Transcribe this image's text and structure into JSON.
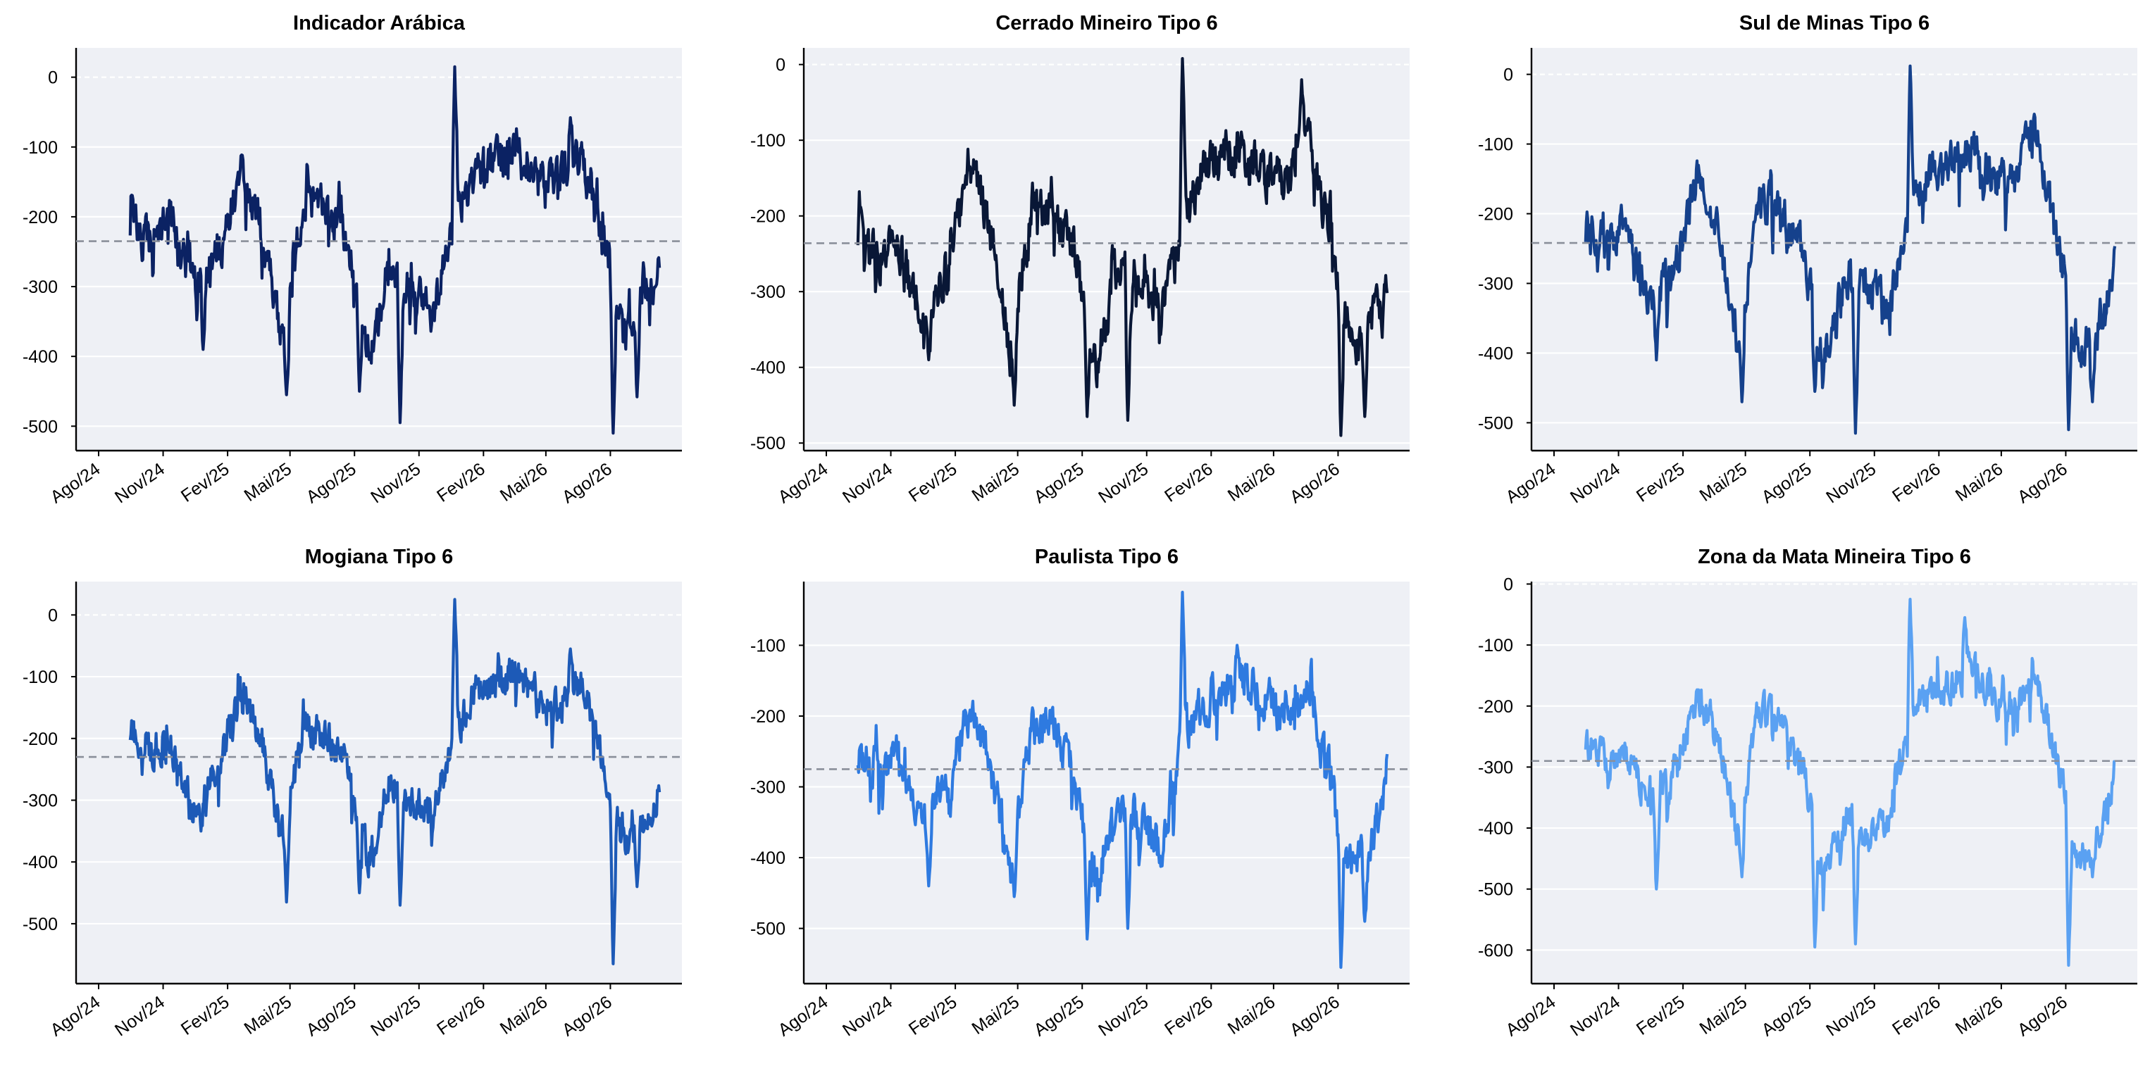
{
  "chart_data": [
    {
      "type": "line",
      "title": "Indicador Arábica",
      "color": "#0b2263",
      "mean": -235,
      "ylim": [
        -535,
        42
      ],
      "y_ticks": [
        0,
        -100,
        -200,
        -300,
        -400,
        -500
      ],
      "x_ticks": [
        "Ago/24",
        "Nov/24",
        "Fev/25",
        "Mai/25",
        "Ago/25",
        "Nov/25",
        "Fev/26",
        "Mai/26",
        "Ago/26"
      ],
      "anchors": [
        {
          "x": "2024-09-15",
          "y": -205
        },
        {
          "x": "2024-10-15",
          "y": -240
        },
        {
          "x": "2024-11-10",
          "y": -190
        },
        {
          "x": "2024-12-10",
          "y": -300
        },
        {
          "x": "2025-01-20",
          "y": -250
        },
        {
          "x": "2025-02-20",
          "y": -140
        },
        {
          "x": "2025-03-20",
          "y": -210
        },
        {
          "x": "2025-04-20",
          "y": -380
        },
        {
          "x": "2025-05-20",
          "y": -175
        },
        {
          "x": "2025-06-20",
          "y": -180
        },
        {
          "x": "2025-07-20",
          "y": -230
        },
        {
          "x": "2025-08-20",
          "y": -400
        },
        {
          "x": "2025-09-20",
          "y": -280
        },
        {
          "x": "2025-10-20",
          "y": -300
        },
        {
          "x": "2025-11-20",
          "y": -340
        },
        {
          "x": "2025-12-20",
          "y": -200
        },
        {
          "x": "2026-01-20",
          "y": -140
        },
        {
          "x": "2026-02-20",
          "y": -120
        },
        {
          "x": "2026-03-20",
          "y": -100
        },
        {
          "x": "2026-04-20",
          "y": -150
        },
        {
          "x": "2026-05-20",
          "y": -140
        },
        {
          "x": "2026-06-20",
          "y": -110
        },
        {
          "x": "2026-07-20",
          "y": -240
        },
        {
          "x": "2026-08-20",
          "y": -380
        },
        {
          "x": "2026-09-20",
          "y": -300
        },
        {
          "x": "2026-10-10",
          "y": -270
        }
      ],
      "spikes": [
        {
          "x": "2024-12-28",
          "y": -390
        },
        {
          "x": "2025-04-26",
          "y": -455
        },
        {
          "x": "2025-08-08",
          "y": -450
        },
        {
          "x": "2025-10-05",
          "y": -495
        },
        {
          "x": "2025-12-22",
          "y": 15
        },
        {
          "x": "2026-06-05",
          "y": -58
        },
        {
          "x": "2026-08-05",
          "y": -510
        },
        {
          "x": "2026-09-08",
          "y": -458
        }
      ]
    },
    {
      "type": "line",
      "title": "Cerrado Mineiro Tipo 6",
      "color": "#091736",
      "mean": -236,
      "ylim": [
        -510,
        22
      ],
      "y_ticks": [
        0,
        -100,
        -200,
        -300,
        -400,
        -500
      ],
      "x_ticks": [
        "Ago/24",
        "Nov/24",
        "Fev/25",
        "Mai/25",
        "Ago/25",
        "Nov/25",
        "Fev/26",
        "Mai/26",
        "Ago/26"
      ],
      "anchors": [
        {
          "x": "2024-09-15",
          "y": -220
        },
        {
          "x": "2024-10-15",
          "y": -255
        },
        {
          "x": "2024-11-10",
          "y": -230
        },
        {
          "x": "2024-12-10",
          "y": -330
        },
        {
          "x": "2025-01-20",
          "y": -280
        },
        {
          "x": "2025-02-20",
          "y": -130
        },
        {
          "x": "2025-03-20",
          "y": -210
        },
        {
          "x": "2025-04-20",
          "y": -380
        },
        {
          "x": "2025-05-20",
          "y": -190
        },
        {
          "x": "2025-06-20",
          "y": -200
        },
        {
          "x": "2025-07-20",
          "y": -240
        },
        {
          "x": "2025-08-20",
          "y": -400
        },
        {
          "x": "2025-09-20",
          "y": -260
        },
        {
          "x": "2025-10-20",
          "y": -300
        },
        {
          "x": "2025-11-20",
          "y": -320
        },
        {
          "x": "2025-12-20",
          "y": -220
        },
        {
          "x": "2026-01-20",
          "y": -140
        },
        {
          "x": "2026-02-20",
          "y": -120
        },
        {
          "x": "2026-03-20",
          "y": -110
        },
        {
          "x": "2026-04-20",
          "y": -150
        },
        {
          "x": "2026-05-20",
          "y": -150
        },
        {
          "x": "2026-06-20",
          "y": -100
        },
        {
          "x": "2026-07-20",
          "y": -230
        },
        {
          "x": "2026-08-20",
          "y": -380
        },
        {
          "x": "2026-09-20",
          "y": -330
        },
        {
          "x": "2026-10-10",
          "y": -300
        }
      ],
      "spikes": [
        {
          "x": "2024-12-25",
          "y": -390
        },
        {
          "x": "2025-04-26",
          "y": -450
        },
        {
          "x": "2025-08-08",
          "y": -465
        },
        {
          "x": "2025-10-05",
          "y": -470
        },
        {
          "x": "2025-12-22",
          "y": 8
        },
        {
          "x": "2026-06-10",
          "y": -20
        },
        {
          "x": "2026-08-05",
          "y": -490
        },
        {
          "x": "2026-09-08",
          "y": -465
        }
      ]
    },
    {
      "type": "line",
      "title": "Sul de Minas Tipo 6",
      "color": "#15418c",
      "mean": -242,
      "ylim": [
        -540,
        38
      ],
      "y_ticks": [
        0,
        -100,
        -200,
        -300,
        -400,
        -500
      ],
      "x_ticks": [
        "Ago/24",
        "Nov/24",
        "Fev/25",
        "Mai/25",
        "Ago/25",
        "Nov/25",
        "Fev/26",
        "Mai/26",
        "Ago/26"
      ],
      "anchors": [
        {
          "x": "2024-09-15",
          "y": -225
        },
        {
          "x": "2024-10-15",
          "y": -245
        },
        {
          "x": "2024-11-10",
          "y": -210
        },
        {
          "x": "2024-12-10",
          "y": -320
        },
        {
          "x": "2025-01-20",
          "y": -280
        },
        {
          "x": "2025-02-20",
          "y": -145
        },
        {
          "x": "2025-03-20",
          "y": -210
        },
        {
          "x": "2025-04-20",
          "y": -390
        },
        {
          "x": "2025-05-20",
          "y": -180
        },
        {
          "x": "2025-06-20",
          "y": -190
        },
        {
          "x": "2025-07-20",
          "y": -250
        },
        {
          "x": "2025-08-20",
          "y": -410
        },
        {
          "x": "2025-09-20",
          "y": -290
        },
        {
          "x": "2025-10-20",
          "y": -300
        },
        {
          "x": "2025-11-20",
          "y": -340
        },
        {
          "x": "2025-12-20",
          "y": -200
        },
        {
          "x": "2026-01-20",
          "y": -140
        },
        {
          "x": "2026-02-20",
          "y": -120
        },
        {
          "x": "2026-03-20",
          "y": -110
        },
        {
          "x": "2026-04-20",
          "y": -150
        },
        {
          "x": "2026-05-20",
          "y": -150
        },
        {
          "x": "2026-06-20",
          "y": -80
        },
        {
          "x": "2026-07-20",
          "y": -250
        },
        {
          "x": "2026-08-20",
          "y": -400
        },
        {
          "x": "2026-09-20",
          "y": -360
        },
        {
          "x": "2026-10-10",
          "y": -270
        }
      ],
      "spikes": [
        {
          "x": "2024-12-25",
          "y": -410
        },
        {
          "x": "2025-04-26",
          "y": -470
        },
        {
          "x": "2025-08-08",
          "y": -455
        },
        {
          "x": "2025-10-05",
          "y": -515
        },
        {
          "x": "2025-12-22",
          "y": 12
        },
        {
          "x": "2026-06-05",
          "y": -68
        },
        {
          "x": "2026-08-05",
          "y": -510
        },
        {
          "x": "2026-09-08",
          "y": -470
        }
      ]
    },
    {
      "type": "line",
      "title": "Mogiana Tipo 6",
      "color": "#1d5ab7",
      "mean": -230,
      "ylim": [
        -597,
        54
      ],
      "y_ticks": [
        0,
        -100,
        -200,
        -300,
        -400,
        -500
      ],
      "x_ticks": [
        "Ago/24",
        "Nov/24",
        "Fev/25",
        "Mai/25",
        "Ago/25",
        "Nov/25",
        "Fev/26",
        "Mai/26",
        "Ago/26"
      ],
      "anchors": [
        {
          "x": "2024-09-15",
          "y": -190
        },
        {
          "x": "2024-10-15",
          "y": -220
        },
        {
          "x": "2024-11-10",
          "y": -200
        },
        {
          "x": "2024-12-10",
          "y": -300
        },
        {
          "x": "2025-01-20",
          "y": -240
        },
        {
          "x": "2025-02-20",
          "y": -130
        },
        {
          "x": "2025-03-20",
          "y": -200
        },
        {
          "x": "2025-04-20",
          "y": -360
        },
        {
          "x": "2025-05-20",
          "y": -180
        },
        {
          "x": "2025-06-20",
          "y": -190
        },
        {
          "x": "2025-07-20",
          "y": -240
        },
        {
          "x": "2025-08-20",
          "y": -400
        },
        {
          "x": "2025-09-20",
          "y": -270
        },
        {
          "x": "2025-10-20",
          "y": -300
        },
        {
          "x": "2025-11-20",
          "y": -330
        },
        {
          "x": "2025-12-20",
          "y": -200
        },
        {
          "x": "2026-01-20",
          "y": -120
        },
        {
          "x": "2026-02-20",
          "y": -110
        },
        {
          "x": "2026-03-20",
          "y": -90
        },
        {
          "x": "2026-04-20",
          "y": -150
        },
        {
          "x": "2026-05-20",
          "y": -150
        },
        {
          "x": "2026-06-20",
          "y": -100
        },
        {
          "x": "2026-07-20",
          "y": -240
        },
        {
          "x": "2026-08-20",
          "y": -380
        },
        {
          "x": "2026-09-20",
          "y": -330
        },
        {
          "x": "2026-10-10",
          "y": -280
        }
      ],
      "spikes": [
        {
          "x": "2024-12-25",
          "y": -350
        },
        {
          "x": "2025-04-26",
          "y": -465
        },
        {
          "x": "2025-08-08",
          "y": -450
        },
        {
          "x": "2025-10-05",
          "y": -470
        },
        {
          "x": "2025-12-22",
          "y": 25
        },
        {
          "x": "2026-06-05",
          "y": -55
        },
        {
          "x": "2026-08-05",
          "y": -565
        },
        {
          "x": "2026-09-08",
          "y": -440
        }
      ]
    },
    {
      "type": "line",
      "title": "Paulista Tipo 6",
      "color": "#2e7ae0",
      "mean": -275,
      "ylim": [
        -578,
        -10
      ],
      "y_ticks": [
        -100,
        -200,
        -300,
        -400,
        -500
      ],
      "x_ticks": [
        "Ago/24",
        "Nov/24",
        "Fev/25",
        "Mai/25",
        "Ago/25",
        "Nov/25",
        "Fev/26",
        "Mai/26",
        "Ago/26"
      ],
      "anchors": [
        {
          "x": "2024-09-15",
          "y": -260
        },
        {
          "x": "2024-10-15",
          "y": -275
        },
        {
          "x": "2024-11-10",
          "y": -250
        },
        {
          "x": "2024-12-10",
          "y": -350
        },
        {
          "x": "2025-01-20",
          "y": -300
        },
        {
          "x": "2025-02-20",
          "y": -190
        },
        {
          "x": "2025-03-20",
          "y": -260
        },
        {
          "x": "2025-04-20",
          "y": -410
        },
        {
          "x": "2025-05-20",
          "y": -220
        },
        {
          "x": "2025-06-20",
          "y": -220
        },
        {
          "x": "2025-07-20",
          "y": -280
        },
        {
          "x": "2025-08-20",
          "y": -450
        },
        {
          "x": "2025-09-20",
          "y": -320
        },
        {
          "x": "2025-10-20",
          "y": -350
        },
        {
          "x": "2025-11-20",
          "y": -390
        },
        {
          "x": "2025-12-20",
          "y": -250
        },
        {
          "x": "2026-01-20",
          "y": -180
        },
        {
          "x": "2026-02-20",
          "y": -170
        },
        {
          "x": "2026-03-20",
          "y": -140
        },
        {
          "x": "2026-04-20",
          "y": -190
        },
        {
          "x": "2026-05-20",
          "y": -190
        },
        {
          "x": "2026-06-20",
          "y": -160
        },
        {
          "x": "2026-07-20",
          "y": -280
        },
        {
          "x": "2026-08-20",
          "y": -420
        },
        {
          "x": "2026-09-20",
          "y": -380
        },
        {
          "x": "2026-10-10",
          "y": -270
        }
      ],
      "spikes": [
        {
          "x": "2024-12-25",
          "y": -440
        },
        {
          "x": "2025-04-26",
          "y": -455
        },
        {
          "x": "2025-08-08",
          "y": -515
        },
        {
          "x": "2025-10-05",
          "y": -500
        },
        {
          "x": "2025-12-22",
          "y": -25
        },
        {
          "x": "2026-03-10",
          "y": -100
        },
        {
          "x": "2026-08-05",
          "y": -555
        },
        {
          "x": "2026-09-08",
          "y": -490
        }
      ]
    },
    {
      "type": "line",
      "title": "Zona da Mata Mineira Tipo 6",
      "color": "#5aa1f2",
      "mean": -290,
      "ylim": [
        -655,
        4
      ],
      "y_ticks": [
        0,
        -100,
        -200,
        -300,
        -400,
        -500,
        -600
      ],
      "x_ticks": [
        "Ago/24",
        "Nov/24",
        "Fev/25",
        "Mai/25",
        "Ago/25",
        "Nov/25",
        "Fev/26",
        "Mai/26",
        "Ago/26"
      ],
      "anchors": [
        {
          "x": "2024-09-15",
          "y": -265
        },
        {
          "x": "2024-10-15",
          "y": -290
        },
        {
          "x": "2024-11-10",
          "y": -260
        },
        {
          "x": "2024-12-10",
          "y": -360
        },
        {
          "x": "2025-01-20",
          "y": -310
        },
        {
          "x": "2025-02-20",
          "y": -190
        },
        {
          "x": "2025-03-20",
          "y": -240
        },
        {
          "x": "2025-04-20",
          "y": -420
        },
        {
          "x": "2025-05-20",
          "y": -200
        },
        {
          "x": "2025-06-20",
          "y": -230
        },
        {
          "x": "2025-07-20",
          "y": -300
        },
        {
          "x": "2025-08-20",
          "y": -480
        },
        {
          "x": "2025-09-20",
          "y": -380
        },
        {
          "x": "2025-10-20",
          "y": -410
        },
        {
          "x": "2025-11-20",
          "y": -380
        },
        {
          "x": "2025-12-20",
          "y": -230
        },
        {
          "x": "2026-01-20",
          "y": -180
        },
        {
          "x": "2026-02-20",
          "y": -160
        },
        {
          "x": "2026-03-20",
          "y": -130
        },
        {
          "x": "2026-04-20",
          "y": -190
        },
        {
          "x": "2026-05-20",
          "y": -200
        },
        {
          "x": "2026-06-20",
          "y": -170
        },
        {
          "x": "2026-07-20",
          "y": -290
        },
        {
          "x": "2026-08-20",
          "y": -460
        },
        {
          "x": "2026-09-20",
          "y": -400
        },
        {
          "x": "2026-10-10",
          "y": -300
        }
      ],
      "spikes": [
        {
          "x": "2024-12-25",
          "y": -500
        },
        {
          "x": "2025-04-26",
          "y": -480
        },
        {
          "x": "2025-08-08",
          "y": -595
        },
        {
          "x": "2025-10-05",
          "y": -590
        },
        {
          "x": "2025-12-22",
          "y": -25
        },
        {
          "x": "2026-03-10",
          "y": -55
        },
        {
          "x": "2026-08-05",
          "y": -625
        },
        {
          "x": "2026-09-08",
          "y": -480
        }
      ]
    }
  ]
}
